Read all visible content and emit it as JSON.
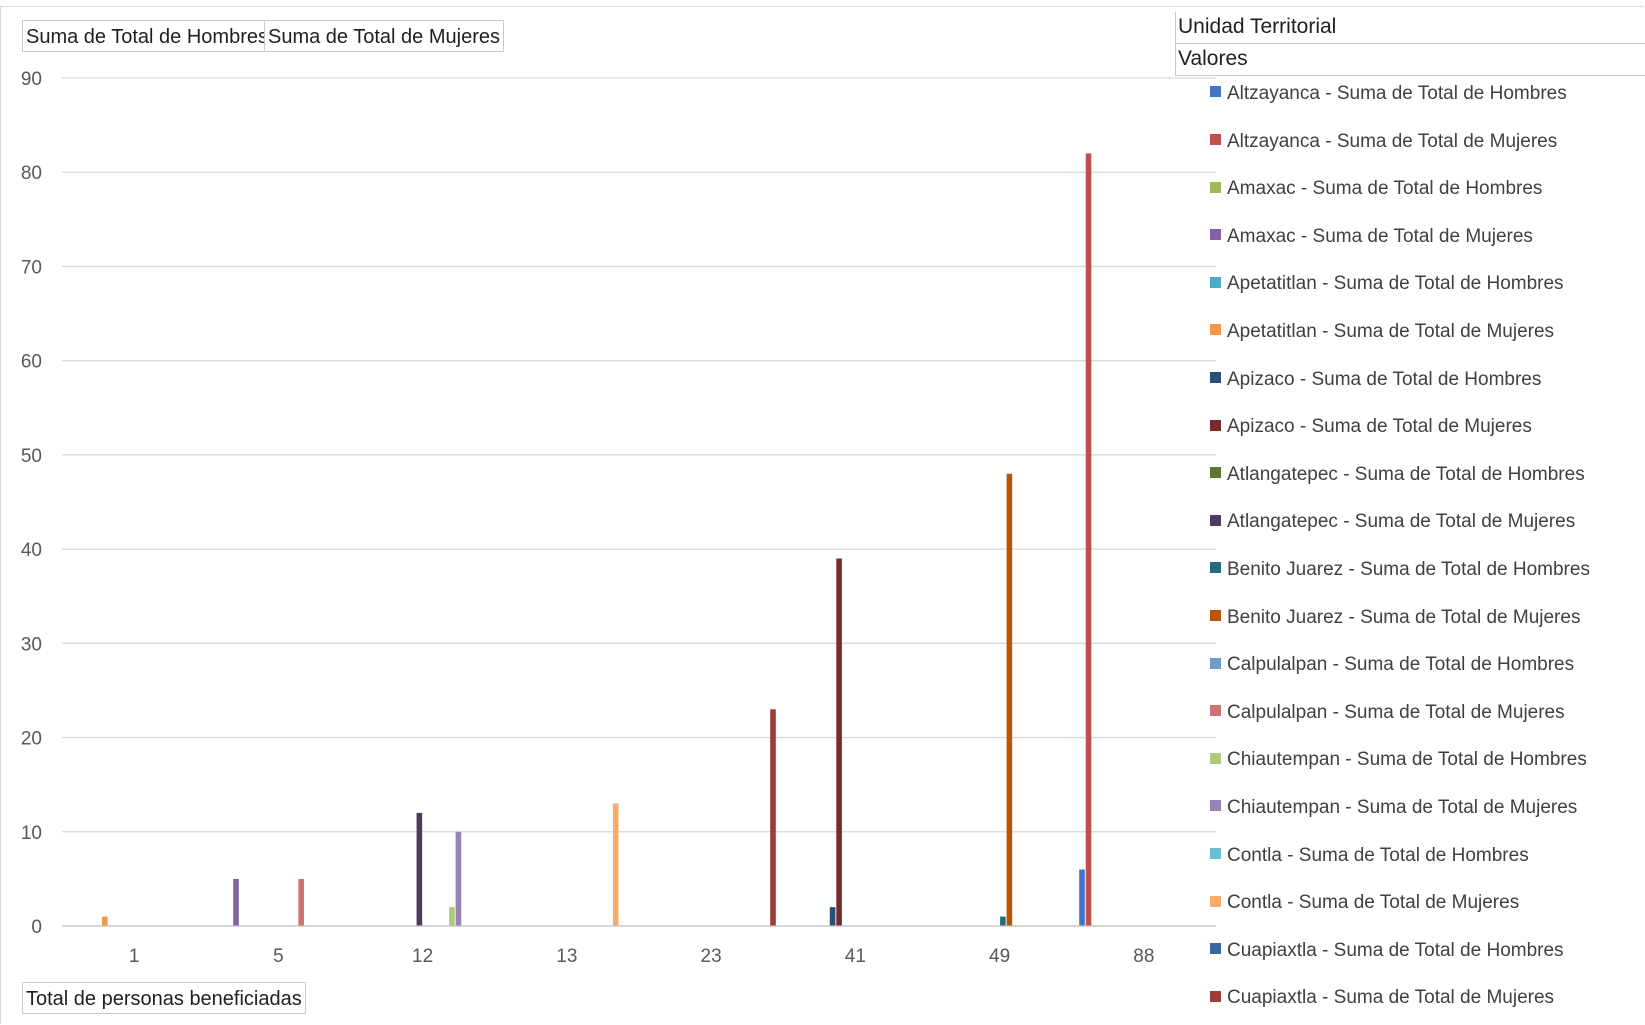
{
  "field_buttons": {
    "values": [
      "Suma de Total de Hombres",
      "Suma de Total de Mujeres"
    ],
    "axis": "Total de personas beneficiadas"
  },
  "pivot_headers": {
    "columns": "Unidad Territorial",
    "values": "Valores"
  },
  "chart_data": {
    "type": "bar",
    "title": "",
    "xlabel": "",
    "ylabel": "",
    "ylim": [
      0,
      90
    ],
    "yticks": [
      0,
      10,
      20,
      30,
      40,
      50,
      60,
      70,
      80,
      90
    ],
    "grid": true,
    "legend_position": "right",
    "categories": [
      "1",
      "5",
      "12",
      "13",
      "23",
      "41",
      "49",
      "88"
    ],
    "series": [
      {
        "name": "Altzayanca  - Suma de Total de Hombres",
        "color": "#4472C4",
        "values": [
          null,
          null,
          null,
          null,
          null,
          null,
          null,
          6
        ]
      },
      {
        "name": "Altzayanca  - Suma de Total de Mujeres",
        "color": "#C0504D",
        "values": [
          null,
          null,
          null,
          null,
          null,
          null,
          null,
          82
        ]
      },
      {
        "name": "Amaxac - Suma de Total de Hombres",
        "color": "#9BBB59",
        "values": [
          null,
          null,
          null,
          null,
          null,
          null,
          null,
          null
        ]
      },
      {
        "name": "Amaxac - Suma de Total de Mujeres",
        "color": "#8064A2",
        "values": [
          null,
          5,
          null,
          null,
          null,
          null,
          null,
          null
        ]
      },
      {
        "name": "Apetatitlan - Suma de Total de Hombres",
        "color": "#4BACC6",
        "values": [
          null,
          null,
          null,
          null,
          null,
          null,
          null,
          null
        ]
      },
      {
        "name": "Apetatitlan - Suma de Total de Mujeres",
        "color": "#F79646",
        "values": [
          1,
          null,
          null,
          null,
          null,
          null,
          null,
          null
        ]
      },
      {
        "name": "Apizaco - Suma de Total de Hombres",
        "color": "#2C4D75",
        "values": [
          null,
          null,
          null,
          null,
          null,
          2,
          null,
          null
        ]
      },
      {
        "name": "Apizaco - Suma de Total de Mujeres",
        "color": "#772C2A",
        "values": [
          null,
          null,
          null,
          null,
          null,
          39,
          null,
          null
        ]
      },
      {
        "name": "Atlangatepec - Suma de Total de Hombres",
        "color": "#5F7530",
        "values": [
          null,
          null,
          null,
          null,
          null,
          null,
          null,
          null
        ]
      },
      {
        "name": "Atlangatepec - Suma de Total de Mujeres",
        "color": "#4D3B62",
        "values": [
          null,
          null,
          12,
          null,
          null,
          null,
          null,
          null
        ]
      },
      {
        "name": "Benito Juarez  - Suma de Total de Hombres",
        "color": "#276A7C",
        "values": [
          null,
          null,
          null,
          null,
          null,
          null,
          1,
          null
        ]
      },
      {
        "name": "Benito Juarez  - Suma de Total de Mujeres",
        "color": "#B65708",
        "values": [
          null,
          null,
          null,
          null,
          null,
          null,
          48,
          null
        ]
      },
      {
        "name": "Calpulalpan - Suma de Total de Hombres",
        "color": "#729ACA",
        "values": [
          null,
          null,
          null,
          null,
          null,
          null,
          null,
          null
        ]
      },
      {
        "name": "Calpulalpan - Suma de Total de Mujeres",
        "color": "#CD7371",
        "values": [
          null,
          5,
          null,
          null,
          null,
          null,
          null,
          null
        ]
      },
      {
        "name": "Chiautempan - Suma de Total de Hombres",
        "color": "#AFC97A",
        "values": [
          null,
          null,
          2,
          null,
          null,
          null,
          null,
          null
        ]
      },
      {
        "name": "Chiautempan - Suma de Total de Mujeres",
        "color": "#9983B5",
        "values": [
          null,
          null,
          10,
          null,
          null,
          null,
          null,
          null
        ]
      },
      {
        "name": "Contla - Suma de Total de Hombres",
        "color": "#6FBDD1",
        "values": [
          null,
          null,
          null,
          null,
          null,
          null,
          null,
          null
        ]
      },
      {
        "name": "Contla - Suma de Total de Mujeres",
        "color": "#F9AB6B",
        "values": [
          null,
          null,
          null,
          13,
          null,
          null,
          null,
          null
        ]
      },
      {
        "name": "Cuapiaxtla - Suma de Total de Hombres",
        "color": "#3A679C",
        "values": [
          null,
          null,
          null,
          null,
          null,
          null,
          null,
          null
        ]
      },
      {
        "name": "Cuapiaxtla - Suma de Total de Mujeres",
        "color": "#9F3B38",
        "values": [
          null,
          null,
          null,
          null,
          23,
          null,
          null,
          null
        ]
      }
    ]
  }
}
